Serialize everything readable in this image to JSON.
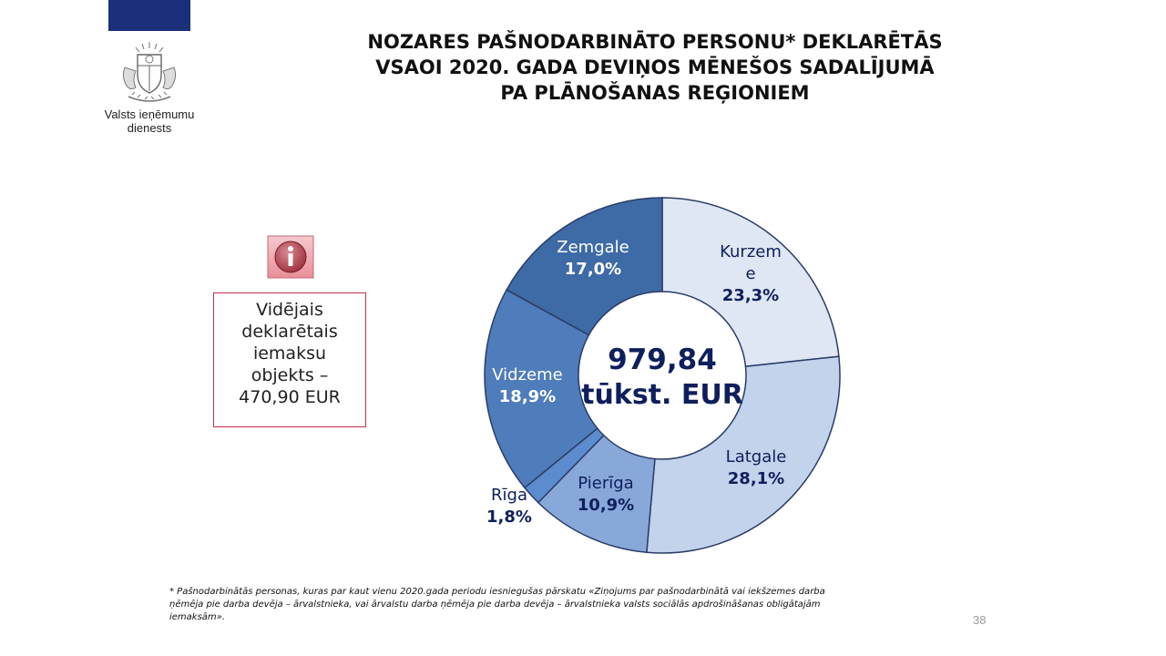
{
  "organization": {
    "name_line1": "Valsts ieņēmumu",
    "name_line2": "dienests"
  },
  "title": {
    "line1": "NOZARES PAŠNODARBINĀTO PERSONU* DEKLARĒTĀS",
    "line2": "VSAOI 2020. GADA DEVIŅOS MĒNEŠOS SADALĪJUMĀ",
    "line3": "PA PLĀNOŠANAS REĢIONIEM"
  },
  "info_box": {
    "lines": [
      "Vidējais",
      "deklarētais",
      "iemaksu",
      "objekts –",
      "470,90 EUR"
    ],
    "border_color": "#c0304a"
  },
  "chart_data": {
    "type": "pie",
    "subtype": "donut",
    "start": "top, clockwise",
    "center_label": [
      "979,84",
      "tūkst. EUR"
    ],
    "categories": [
      "Kurzeme",
      "Latgale",
      "Pierīga",
      "Rīga",
      "Vidzeme",
      "Zemgale"
    ],
    "values": [
      23.3,
      28.1,
      10.9,
      1.8,
      18.9,
      17.0
    ],
    "value_labels": [
      "23,3%",
      "28,1%",
      "10,9%",
      "1,8%",
      "18,9%",
      "17,0%"
    ],
    "label_names": [
      "Kurzem|e",
      "Latgale",
      "Pierīga",
      "Rīga",
      "Vidzeme",
      "Zemgale"
    ],
    "colors": [
      "#dfe6f4",
      "#c3d3ec",
      "#88a8da",
      "#5c8ccd",
      "#4f7cbb",
      "#3e6aa6"
    ],
    "label_colors": [
      "#0f1f5c",
      "#0f1f5c",
      "#0f1f5c",
      "#0f1f5c",
      "#ffffff",
      "#ffffff"
    ],
    "legend": "none"
  },
  "footnote": {
    "lines": [
      "* Pašnodarbinātās personas, kuras par kaut vienu 2020.gada periodu iesniegušas pārskatu «Ziņojums par pašnodarbinātā vai iekšzemes darba",
      "ņēmēja pie darba devēja – ārvalstnieka, vai ārvalstu darba ņēmēja pie darba devēja – ārvalstnieka valsts sociālās apdrošināšanas obligātajām",
      "iemaksām»."
    ]
  },
  "page_number": "38",
  "colors": {
    "brand_navy": "#1b2f7a",
    "label_dark": "#0f1f5c"
  }
}
